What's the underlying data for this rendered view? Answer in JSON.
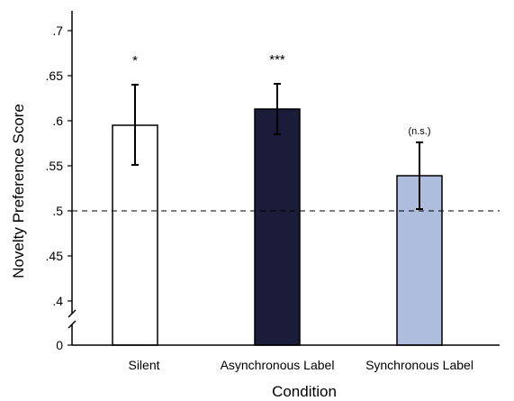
{
  "chart_data": {
    "type": "bar",
    "xlabel": "Condition",
    "ylabel": "Novelty Preference Score",
    "categories": [
      "Silent",
      "Asynchronous Label",
      "Synchronous Label"
    ],
    "values": [
      0.595,
      0.613,
      0.539
    ],
    "error_bars": [
      {
        "low": 0.551,
        "high": 0.64
      },
      {
        "low": 0.585,
        "high": 0.641
      },
      {
        "low": 0.502,
        "high": 0.576
      }
    ],
    "significance": [
      "*",
      "***",
      "(n.s.)"
    ],
    "bar_colors": [
      "#ffffff",
      "#1b1c3a",
      "#aebcde"
    ],
    "bar_edge_color": "#000000",
    "ylim": [
      0.38,
      0.72
    ],
    "yticks": [
      0.4,
      0.45,
      0.5,
      0.55,
      0.6,
      0.65,
      0.7
    ],
    "ytick_labels": [
      ".4",
      ".45",
      ".5",
      ".55",
      ".6",
      ".65",
      ".7"
    ],
    "axis_zero_label": "0",
    "axis_break": true,
    "reference_line": {
      "value": 0.5,
      "style": "dashed"
    },
    "grid": false,
    "legend": "none"
  }
}
